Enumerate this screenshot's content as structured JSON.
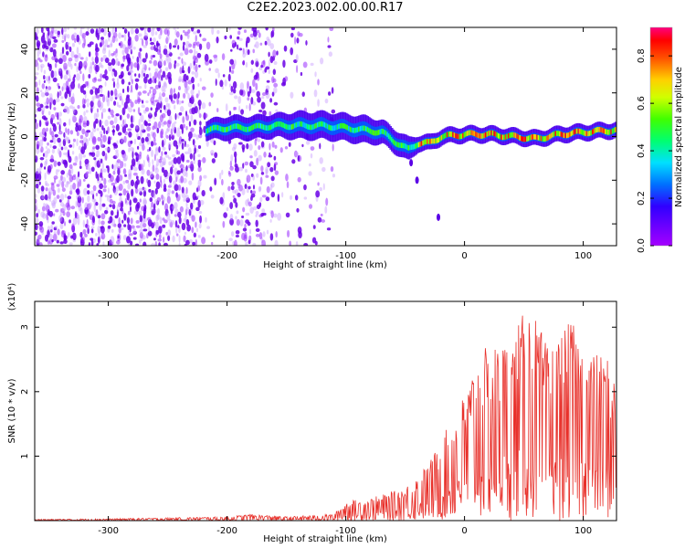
{
  "title": "C2E2.2023.002.00.00.R17",
  "chart_data": [
    {
      "type": "heatmap",
      "xlabel": "Height of straight line (km)",
      "ylabel": "Frequency (Hz)",
      "xlim": [
        -362,
        128
      ],
      "ylim": [
        -50,
        50
      ],
      "xticks": [
        -300,
        -200,
        -100,
        0,
        100
      ],
      "xtick_labels": [
        "-300",
        "-200",
        "-100",
        "0",
        "100"
      ],
      "yticks": [
        -40,
        -20,
        0,
        20,
        40
      ],
      "ytick_labels": [
        "-40",
        "-20",
        "0",
        "20",
        "40"
      ],
      "colorbar": {
        "label": "Normalized spectral amplitude",
        "range": [
          0,
          0.92
        ],
        "ticks": [
          0.0,
          0.2,
          0.4,
          0.6,
          0.8
        ],
        "tick_labels": [
          "0.0",
          "0.2",
          "0.4",
          "0.6",
          "0.8"
        ],
        "colormap": "rainbow (violet to red)"
      },
      "signal_band": [
        {
          "x": -218,
          "freq": 3,
          "width": 5
        },
        {
          "x": -200,
          "freq": 4,
          "width": 6
        },
        {
          "x": -180,
          "freq": 4,
          "width": 6
        },
        {
          "x": -160,
          "freq": 5,
          "width": 6
        },
        {
          "x": -140,
          "freq": 5,
          "width": 7
        },
        {
          "x": -120,
          "freq": 5,
          "width": 7
        },
        {
          "x": -100,
          "freq": 4,
          "width": 7
        },
        {
          "x": -85,
          "freq": 3,
          "width": 7
        },
        {
          "x": -70,
          "freq": 2,
          "width": 6
        },
        {
          "x": -60,
          "freq": -2,
          "width": 6
        },
        {
          "x": -48,
          "freq": -6,
          "width": 6
        },
        {
          "x": -40,
          "freq": -3,
          "width": 4
        },
        {
          "x": -30,
          "freq": -3,
          "width": 4
        },
        {
          "x": -20,
          "freq": 0,
          "width": 4
        },
        {
          "x": 0,
          "freq": 1,
          "width": 4
        },
        {
          "x": 20,
          "freq": 1,
          "width": 4
        },
        {
          "x": 40,
          "freq": 0,
          "width": 4
        },
        {
          "x": 60,
          "freq": -1,
          "width": 4
        },
        {
          "x": 80,
          "freq": 1,
          "width": 4
        },
        {
          "x": 100,
          "freq": 2,
          "width": 4
        },
        {
          "x": 128,
          "freq": 3,
          "width": 4
        }
      ]
    },
    {
      "type": "line",
      "xlabel": "Height of straight line (km)",
      "ylabel": "SNR (10 * v/v)",
      "y_scale_label": "(x10⁴)",
      "xlim": [
        -362,
        128
      ],
      "ylim": [
        0,
        3.4
      ],
      "xticks": [
        -300,
        -200,
        -100,
        0,
        100
      ],
      "xtick_labels": [
        "-300",
        "-200",
        "-100",
        "0",
        "100"
      ],
      "yticks": [
        1,
        2,
        3
      ],
      "ytick_labels": [
        "1",
        "2",
        "3"
      ],
      "color": "#e8302a",
      "envelope": {
        "x": [
          -362,
          -300,
          -230,
          -200,
          -180,
          -150,
          -110,
          -100,
          -80,
          -60,
          -45,
          -30,
          -10,
          0,
          10,
          20,
          40,
          55,
          70,
          90,
          100,
          110,
          120,
          128
        ],
        "y": [
          0.02,
          0.03,
          0.05,
          0.06,
          0.1,
          0.06,
          0.1,
          0.3,
          0.35,
          0.45,
          0.6,
          0.9,
          1.6,
          2.0,
          2.6,
          2.7,
          2.9,
          3.4,
          2.7,
          3.1,
          2.8,
          2.6,
          2.6,
          2.2
        ]
      }
    }
  ]
}
